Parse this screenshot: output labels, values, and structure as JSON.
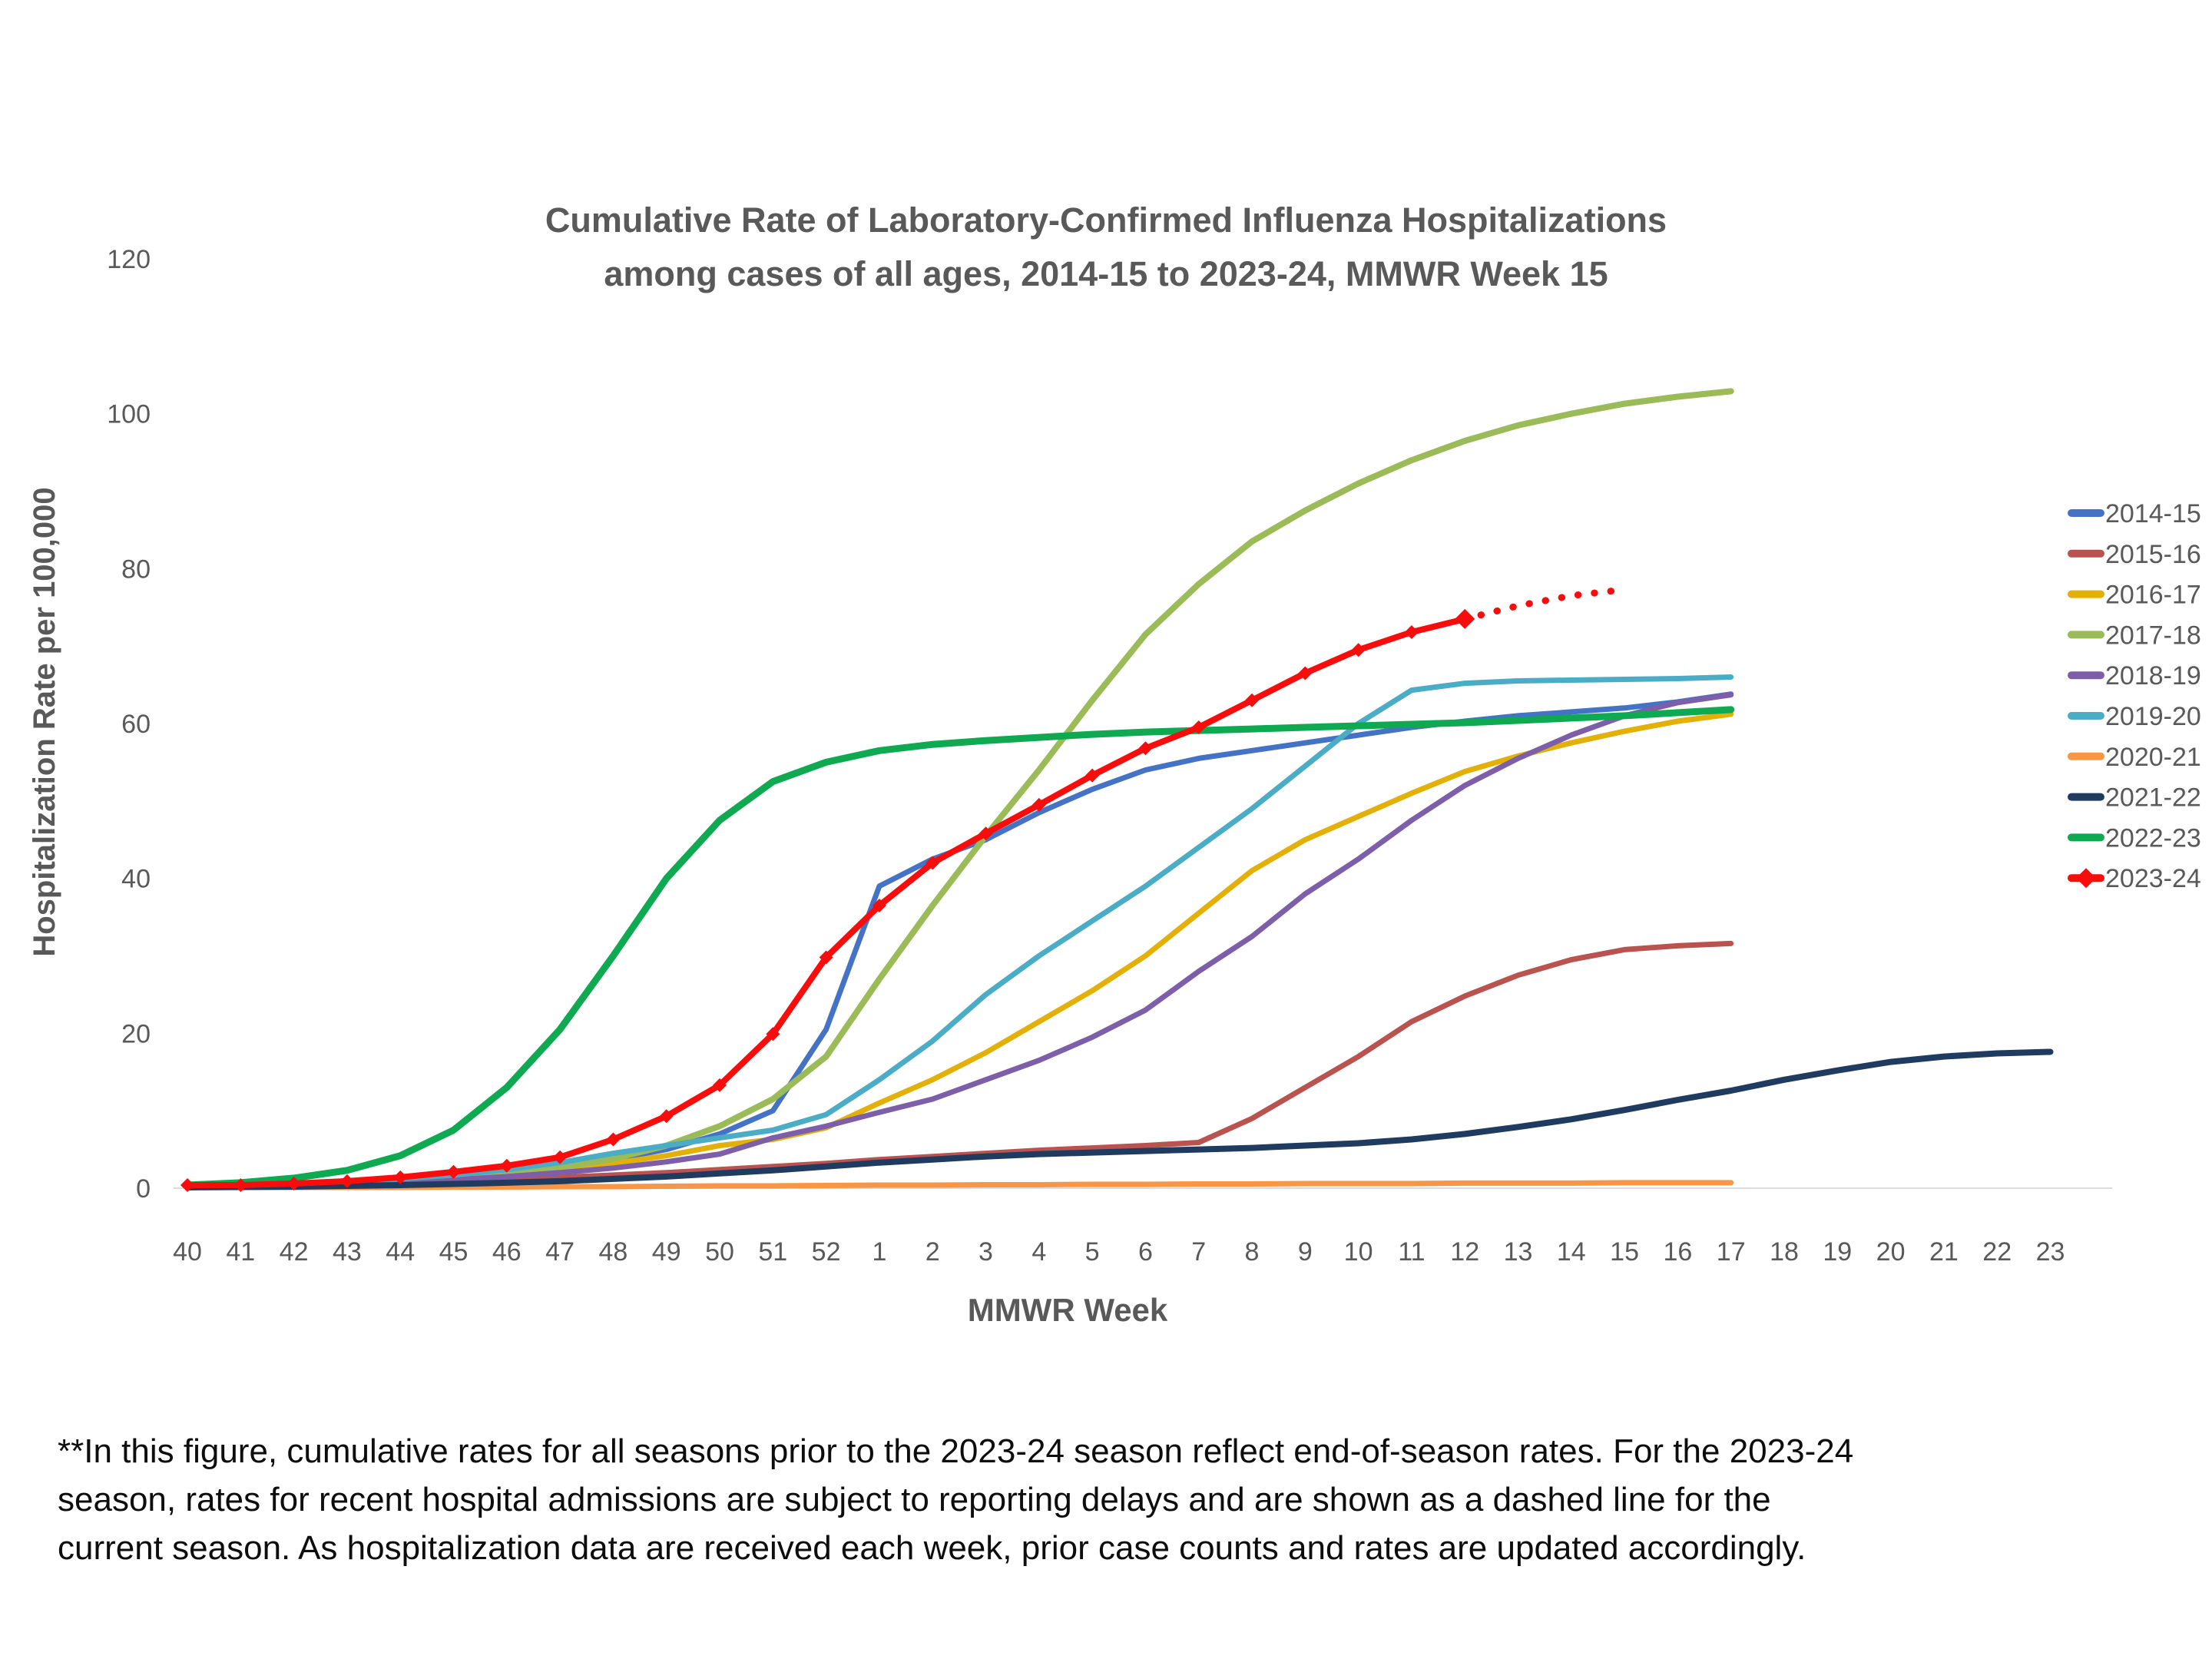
{
  "title": {
    "line1": "Cumulative Rate of Laboratory-Confirmed Influenza Hospitalizations",
    "line2": "among cases of all ages, 2014-15 to 2023-24, MMWR Week 15"
  },
  "y_axis": {
    "label": "Hospitalization Rate per 100,000",
    "ticks": [
      0,
      20,
      40,
      60,
      80,
      100,
      120
    ],
    "max": 120
  },
  "x_axis": {
    "label": "MMWR Week"
  },
  "footnote": {
    "lines": [
      "**In this figure, cumulative rates for all seasons prior to the 2023-24 season reflect end-of-season rates. For the 2023-24",
      "season, rates for recent hospital admissions are subject to reporting delays and are shown as a dashed line for the",
      "current season. As hospitalization data are received each week, prior case counts and rates are updated accordingly."
    ]
  },
  "chart_data": {
    "type": "line",
    "title": "Cumulative Rate of Laboratory-Confirmed Influenza Hospitalizations among cases of all ages, 2014-15 to 2023-24, MMWR Week 15",
    "xlabel": "MMWR Week",
    "ylabel": "Hospitalization Rate per 100,000",
    "ylim": [
      0,
      120
    ],
    "grid": false,
    "legend_position": "right",
    "categories": [
      "40",
      "41",
      "42",
      "43",
      "44",
      "45",
      "46",
      "47",
      "48",
      "49",
      "50",
      "51",
      "52",
      "1",
      "2",
      "3",
      "4",
      "5",
      "6",
      "7",
      "8",
      "9",
      "10",
      "11",
      "12",
      "13",
      "14",
      "15",
      "16",
      "17",
      "18",
      "19",
      "20",
      "21",
      "22",
      "23"
    ],
    "series": [
      {
        "name": "2014-15",
        "color": "#4472C4",
        "width": 7,
        "values": [
          0.3,
          0.4,
          0.6,
          0.9,
          1.2,
          1.6,
          2.1,
          2.8,
          3.7,
          5.0,
          7.0,
          10.0,
          20.5,
          39.0,
          42.5,
          45.0,
          48.5,
          51.5,
          54.0,
          55.5,
          56.5,
          57.5,
          58.5,
          59.5,
          60.3,
          61.0,
          61.5,
          62.0,
          62.8,
          63.8,
          null,
          null,
          null,
          null,
          null,
          null
        ]
      },
      {
        "name": "2015-16",
        "color": "#B9534F",
        "width": 7,
        "values": [
          0.2,
          0.3,
          0.4,
          0.5,
          0.7,
          0.9,
          1.1,
          1.4,
          1.7,
          2.0,
          2.4,
          2.8,
          3.2,
          3.7,
          4.1,
          4.5,
          4.9,
          5.2,
          5.5,
          5.9,
          9.0,
          13.0,
          17.0,
          21.5,
          24.8,
          27.5,
          29.5,
          30.8,
          31.3,
          31.6,
          null,
          null,
          null,
          null,
          null,
          null
        ]
      },
      {
        "name": "2016-17",
        "color": "#E2B007",
        "width": 7,
        "values": [
          0.2,
          0.3,
          0.5,
          0.7,
          1.0,
          1.4,
          1.9,
          2.5,
          3.2,
          4.2,
          5.5,
          6.3,
          7.8,
          11.0,
          14.0,
          17.5,
          21.5,
          25.5,
          30.0,
          35.5,
          41.0,
          45.0,
          48.0,
          51.0,
          53.8,
          55.8,
          57.5,
          59.0,
          60.3,
          61.2,
          null,
          null,
          null,
          null,
          null,
          null
        ]
      },
      {
        "name": "2017-18",
        "color": "#9BBB59",
        "width": 8,
        "values": [
          0.2,
          0.3,
          0.4,
          0.6,
          0.9,
          1.3,
          1.9,
          2.7,
          3.8,
          5.5,
          8.0,
          11.5,
          17.0,
          27.0,
          36.5,
          45.5,
          54.0,
          63.0,
          71.5,
          78.0,
          83.5,
          87.5,
          91.0,
          94.0,
          96.5,
          98.5,
          100.0,
          101.3,
          102.2,
          102.9,
          null,
          null,
          null,
          null,
          null,
          null
        ]
      },
      {
        "name": "2018-19",
        "color": "#7D5FA9",
        "width": 7,
        "values": [
          0.2,
          0.3,
          0.4,
          0.6,
          0.8,
          1.1,
          1.5,
          2.0,
          2.6,
          3.4,
          4.4,
          6.5,
          8.0,
          9.8,
          11.5,
          14.0,
          16.5,
          19.5,
          23.0,
          28.0,
          32.5,
          38.0,
          42.5,
          47.5,
          52.0,
          55.5,
          58.5,
          61.0,
          62.7,
          63.7,
          null,
          null,
          null,
          null,
          null,
          null
        ]
      },
      {
        "name": "2019-20",
        "color": "#4BACC6",
        "width": 7,
        "values": [
          0.2,
          0.3,
          0.5,
          0.8,
          1.2,
          1.7,
          2.4,
          3.3,
          4.5,
          5.5,
          6.5,
          7.5,
          9.5,
          14.0,
          19.0,
          25.0,
          30.0,
          34.5,
          39.0,
          44.0,
          49.0,
          54.5,
          60.0,
          64.3,
          65.2,
          65.5,
          65.6,
          65.7,
          65.8,
          66.0,
          null,
          null,
          null,
          null,
          null,
          null
        ]
      },
      {
        "name": "2020-21",
        "color": "#F79646",
        "width": 7,
        "values": [
          0.1,
          0.1,
          0.1,
          0.1,
          0.1,
          0.15,
          0.15,
          0.2,
          0.2,
          0.25,
          0.3,
          0.3,
          0.35,
          0.4,
          0.4,
          0.45,
          0.45,
          0.5,
          0.5,
          0.55,
          0.55,
          0.6,
          0.6,
          0.6,
          0.65,
          0.65,
          0.65,
          0.7,
          0.7,
          0.7,
          null,
          null,
          null,
          null,
          null,
          null
        ]
      },
      {
        "name": "2021-22",
        "color": "#1F3B60",
        "width": 8,
        "values": [
          0.1,
          0.15,
          0.2,
          0.3,
          0.4,
          0.55,
          0.7,
          0.9,
          1.2,
          1.5,
          1.9,
          2.3,
          2.8,
          3.3,
          3.7,
          4.1,
          4.4,
          4.6,
          4.8,
          5.0,
          5.2,
          5.5,
          5.8,
          6.3,
          7.0,
          7.9,
          8.9,
          10.1,
          11.4,
          12.6,
          14.0,
          15.2,
          16.3,
          17.0,
          17.4,
          17.6
        ]
      },
      {
        "name": "2022-23",
        "color": "#0EA951",
        "width": 9,
        "values": [
          0.4,
          0.7,
          1.3,
          2.3,
          4.2,
          7.5,
          13.0,
          20.5,
          30.0,
          40.0,
          47.5,
          52.5,
          55.0,
          56.5,
          57.3,
          57.8,
          58.2,
          58.6,
          58.9,
          59.1,
          59.3,
          59.5,
          59.7,
          59.9,
          60.1,
          60.4,
          60.7,
          61.0,
          61.4,
          61.8,
          null,
          null,
          null,
          null,
          null,
          null
        ]
      },
      {
        "name": "2023-24",
        "color": "#F80C0C",
        "width": 8,
        "marker": "diamond",
        "values": [
          0.4,
          0.4,
          0.6,
          0.9,
          1.4,
          2.1,
          2.9,
          4.0,
          6.3,
          9.3,
          13.3,
          19.9,
          29.8,
          36.5,
          42.0,
          45.8,
          49.5,
          53.3,
          56.8,
          59.5,
          63.0,
          66.5,
          69.5,
          71.8,
          73.5,
          null,
          null,
          null,
          null,
          null,
          null,
          null,
          null,
          null,
          null,
          null
        ]
      },
      {
        "name": "2023-24 dashed (reporting delay)",
        "color": "#F80C0C",
        "width": 9,
        "style": "dotted",
        "legend": false,
        "values": [
          null,
          null,
          null,
          null,
          null,
          null,
          null,
          null,
          null,
          null,
          null,
          null,
          null,
          null,
          null,
          null,
          null,
          null,
          null,
          null,
          null,
          null,
          null,
          null,
          73.5,
          75.2,
          76.5,
          77.3,
          null,
          null,
          null,
          null,
          null,
          null,
          null,
          null
        ]
      }
    ]
  }
}
